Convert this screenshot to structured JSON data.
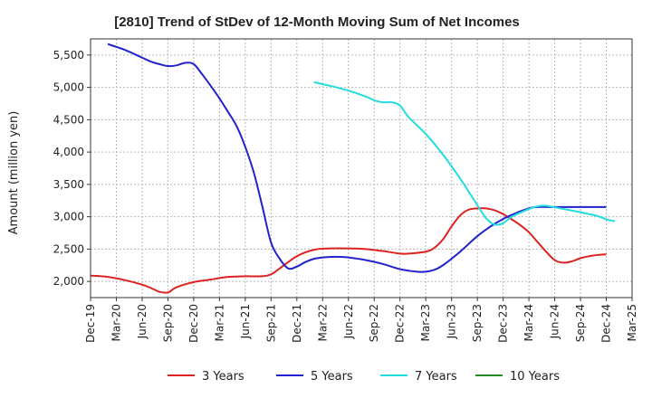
{
  "chart_data": {
    "type": "line",
    "title": "[2810]  Trend of StDev of 12-Month Moving Sum of Net Incomes",
    "ylabel": "Amount (million yen)",
    "xlabel": "",
    "ylim": [
      1750,
      5750
    ],
    "yticks": [
      2000,
      2500,
      3000,
      3500,
      4000,
      4500,
      5000,
      5500
    ],
    "ytick_labels": [
      "2,000",
      "2,500",
      "3,000",
      "3,500",
      "4,000",
      "4,500",
      "5,000",
      "5,500"
    ],
    "x_range": [
      "2019-12",
      "2025-03"
    ],
    "xticks": [
      "2019-12",
      "2020-03",
      "2020-06",
      "2020-09",
      "2020-12",
      "2021-03",
      "2021-06",
      "2021-09",
      "2021-12",
      "2022-03",
      "2022-06",
      "2022-09",
      "2022-12",
      "2023-03",
      "2023-06",
      "2023-09",
      "2023-12",
      "2024-03",
      "2024-06",
      "2024-09",
      "2024-12",
      "2025-03"
    ],
    "xtick_labels": [
      "Dec-19",
      "Mar-20",
      "Jun-20",
      "Sep-20",
      "Dec-20",
      "Mar-21",
      "Jun-21",
      "Sep-21",
      "Dec-21",
      "Mar-22",
      "Jun-22",
      "Sep-22",
      "Dec-22",
      "Mar-23",
      "Jun-23",
      "Sep-23",
      "Dec-23",
      "Mar-24",
      "Jun-24",
      "Sep-24",
      "Dec-24",
      "Mar-25"
    ],
    "grid": true,
    "legend_position": "bottom",
    "series": [
      {
        "name": "3 Years",
        "color": "#dd2222",
        "points": [
          [
            "2019-12",
            2090
          ],
          [
            "2020-02",
            2070
          ],
          [
            "2020-04",
            2020
          ],
          [
            "2020-06",
            1950
          ],
          [
            "2020-07",
            1900
          ],
          [
            "2020-08",
            1840
          ],
          [
            "2020-09",
            1830
          ],
          [
            "2020-10",
            1910
          ],
          [
            "2020-12",
            1990
          ],
          [
            "2021-02",
            2030
          ],
          [
            "2021-04",
            2070
          ],
          [
            "2021-06",
            2080
          ],
          [
            "2021-08",
            2080
          ],
          [
            "2021-09",
            2110
          ],
          [
            "2021-10",
            2200
          ],
          [
            "2021-12",
            2390
          ],
          [
            "2022-02",
            2490
          ],
          [
            "2022-04",
            2510
          ],
          [
            "2022-06",
            2510
          ],
          [
            "2022-08",
            2500
          ],
          [
            "2022-10",
            2470
          ],
          [
            "2022-12",
            2430
          ],
          [
            "2023-01",
            2430
          ],
          [
            "2023-03",
            2460
          ],
          [
            "2023-04",
            2520
          ],
          [
            "2023-05",
            2650
          ],
          [
            "2023-06",
            2850
          ],
          [
            "2023-07",
            3020
          ],
          [
            "2023-08",
            3110
          ],
          [
            "2023-09",
            3130
          ],
          [
            "2023-10",
            3130
          ],
          [
            "2023-11",
            3100
          ],
          [
            "2023-12",
            3040
          ],
          [
            "2024-01",
            2960
          ],
          [
            "2024-02",
            2870
          ],
          [
            "2024-03",
            2760
          ],
          [
            "2024-04",
            2610
          ],
          [
            "2024-05",
            2460
          ],
          [
            "2024-06",
            2330
          ],
          [
            "2024-07",
            2290
          ],
          [
            "2024-08",
            2310
          ],
          [
            "2024-09",
            2360
          ],
          [
            "2024-10",
            2390
          ],
          [
            "2024-11",
            2410
          ],
          [
            "2024-12",
            2420
          ]
        ]
      },
      {
        "name": "5 Years",
        "color": "#2222cc",
        "points": [
          [
            "2020-02",
            5670
          ],
          [
            "2020-04",
            5580
          ],
          [
            "2020-06",
            5460
          ],
          [
            "2020-07",
            5400
          ],
          [
            "2020-08",
            5360
          ],
          [
            "2020-09",
            5330
          ],
          [
            "2020-10",
            5340
          ],
          [
            "2020-11",
            5380
          ],
          [
            "2020-12",
            5360
          ],
          [
            "2021-01",
            5200
          ],
          [
            "2021-02",
            5020
          ],
          [
            "2021-03",
            4830
          ],
          [
            "2021-04",
            4620
          ],
          [
            "2021-05",
            4400
          ],
          [
            "2021-06",
            4080
          ],
          [
            "2021-07",
            3680
          ],
          [
            "2021-08",
            3150
          ],
          [
            "2021-09",
            2600
          ],
          [
            "2021-10",
            2350
          ],
          [
            "2021-11",
            2200
          ],
          [
            "2021-12",
            2230
          ],
          [
            "2022-01",
            2300
          ],
          [
            "2022-02",
            2350
          ],
          [
            "2022-03",
            2370
          ],
          [
            "2022-04",
            2380
          ],
          [
            "2022-05",
            2380
          ],
          [
            "2022-06",
            2370
          ],
          [
            "2022-08",
            2330
          ],
          [
            "2022-10",
            2270
          ],
          [
            "2022-12",
            2190
          ],
          [
            "2023-02",
            2150
          ],
          [
            "2023-03",
            2150
          ],
          [
            "2023-04",
            2180
          ],
          [
            "2023-05",
            2250
          ],
          [
            "2023-07",
            2460
          ],
          [
            "2023-09",
            2700
          ],
          [
            "2023-11",
            2890
          ],
          [
            "2024-01",
            3030
          ],
          [
            "2024-03",
            3130
          ],
          [
            "2024-04",
            3150
          ],
          [
            "2024-06",
            3150
          ],
          [
            "2024-09",
            3150
          ],
          [
            "2024-12",
            3150
          ]
        ]
      },
      {
        "name": "7 Years",
        "color": "#22dddd",
        "points": [
          [
            "2022-02",
            5080
          ],
          [
            "2022-04",
            5020
          ],
          [
            "2022-06",
            4950
          ],
          [
            "2022-08",
            4860
          ],
          [
            "2022-09",
            4800
          ],
          [
            "2022-10",
            4770
          ],
          [
            "2022-11",
            4770
          ],
          [
            "2022-12",
            4720
          ],
          [
            "2023-01",
            4540
          ],
          [
            "2023-03",
            4280
          ],
          [
            "2023-05",
            3960
          ],
          [
            "2023-07",
            3590
          ],
          [
            "2023-09",
            3180
          ],
          [
            "2023-10",
            2980
          ],
          [
            "2023-11",
            2880
          ],
          [
            "2023-12",
            2900
          ],
          [
            "2024-01",
            3000
          ],
          [
            "2024-03",
            3120
          ],
          [
            "2024-04",
            3160
          ],
          [
            "2024-05",
            3170
          ],
          [
            "2024-07",
            3120
          ],
          [
            "2024-09",
            3070
          ],
          [
            "2024-11",
            3010
          ],
          [
            "2024-12",
            2960
          ],
          [
            "2025-01",
            2930
          ]
        ]
      },
      {
        "name": "10 Years",
        "color": "#228822",
        "points": []
      }
    ]
  }
}
